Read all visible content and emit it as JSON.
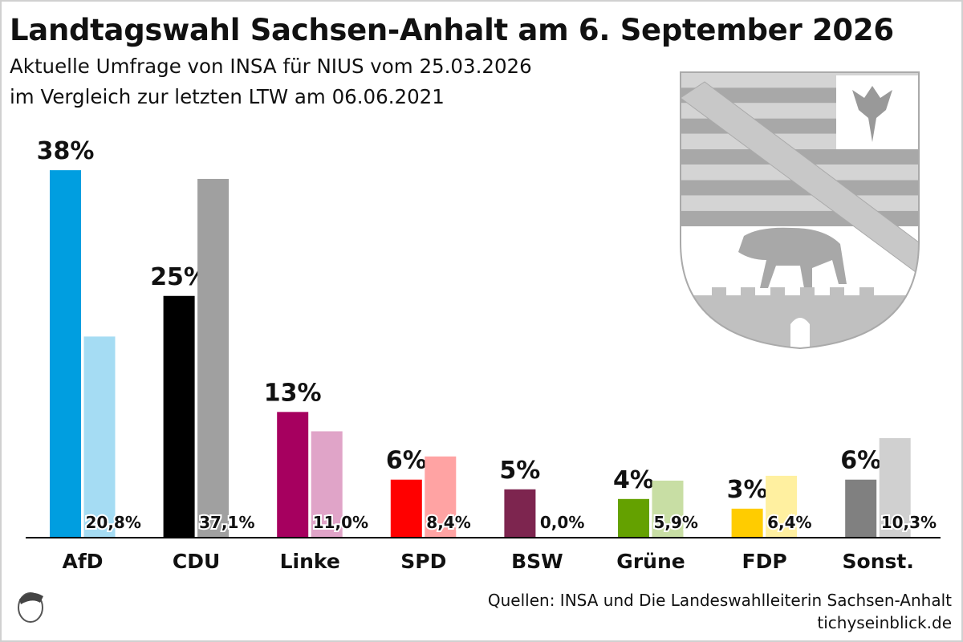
{
  "title": "Landtagswahl Sachsen-Anhalt am 6. September 2026",
  "subtitle1": "Aktuelle Umfrage von INSA für NIUS vom 25.03.2026",
  "subtitle2": "im Vergleich zur letzten LTW am 06.06.2021",
  "source": "Quellen: INSA und Die Landeswahlleiterin Sachsen-Anhalt",
  "site": "tichyseinblick.de",
  "chart_data": {
    "type": "bar",
    "title": "Landtagswahl Sachsen-Anhalt am 6. September 2026",
    "categories": [
      "AfD",
      "CDU",
      "Linke",
      "SPD",
      "BSW",
      "Grüne",
      "FDP",
      "Sonst."
    ],
    "series": [
      {
        "values": [
          38,
          25,
          13,
          6,
          5,
          4,
          3,
          6
        ],
        "labels": [
          "38%",
          "25%",
          "13%",
          "6%",
          "5%",
          "4%",
          "3%",
          "6%"
        ],
        "colors": [
          "#009ee0",
          "#000000",
          "#a6005f",
          "#ff0000",
          "#7d254f",
          "#64a100",
          "#ffcc00",
          "#808080"
        ]
      },
      {
        "values": [
          20.8,
          37.1,
          11.0,
          8.4,
          0.0,
          5.9,
          6.4,
          10.3
        ],
        "labels": [
          "20,8%",
          "37,1%",
          "11,0%",
          "8,4%",
          "0,0%",
          "5,9%",
          "6,4%",
          "10,3%"
        ],
        "colors": [
          "#a5dcf3",
          "#a0a0a0",
          "#e0a4c8",
          "#ffa3a3",
          "#d9b8c8",
          "#c8dea4",
          "#fff0a0",
          "#d0d0d0"
        ]
      }
    ],
    "ylim": [
      0,
      38.5
    ],
    "grid": false
  }
}
